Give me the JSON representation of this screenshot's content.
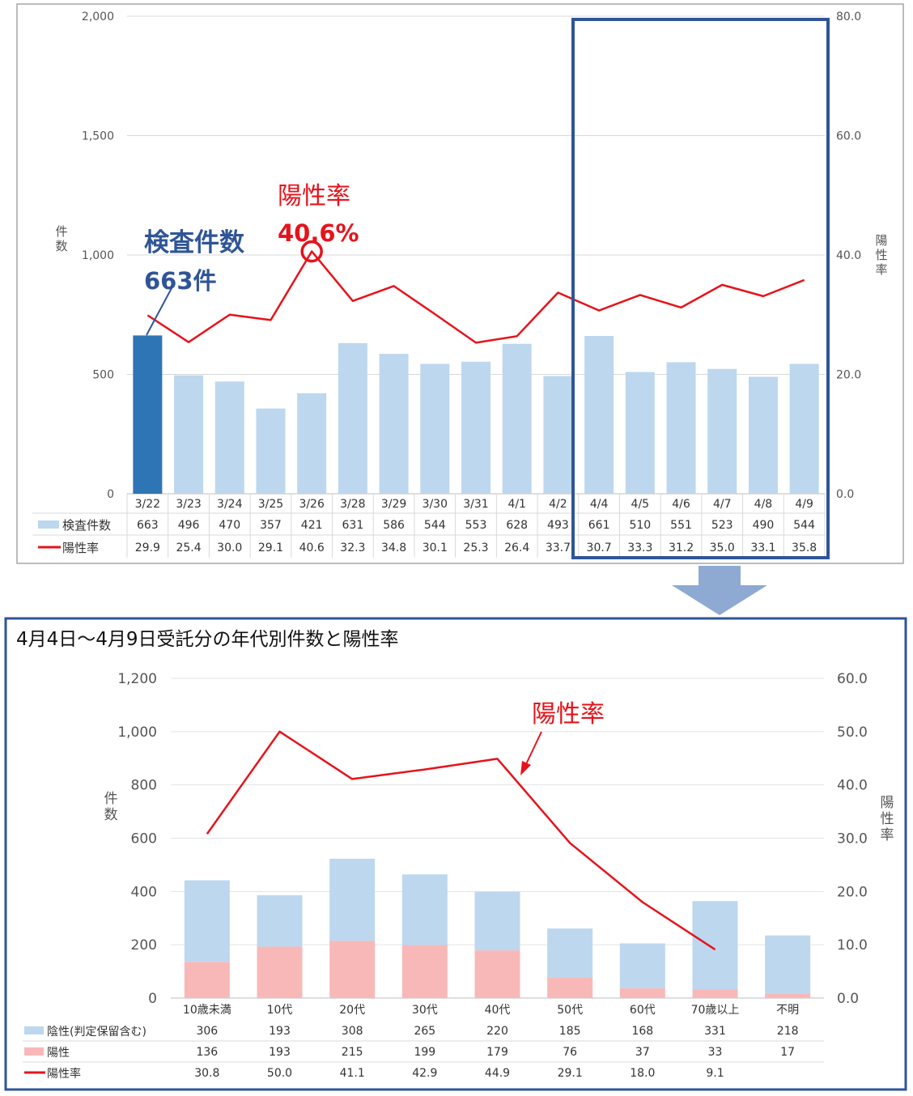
{
  "chart_data": [
    {
      "type": "bar",
      "y_ticks": [
        "2,000",
        "1,500",
        "1,000",
        "500",
        "0"
      ],
      "y2_ticks": [
        "80.0",
        "60.0",
        "40.0",
        "20.0",
        "0.0"
      ],
      "ylim": [
        0,
        2000
      ],
      "y2lim": [
        0,
        80
      ],
      "ylabel": "件数",
      "y2label": "陽性率",
      "categories": [
        "3/22",
        "3/23",
        "3/24",
        "3/25",
        "3/26",
        "3/28",
        "3/29",
        "3/30",
        "3/31",
        "4/1",
        "4/2",
        "4/4",
        "4/5",
        "4/6",
        "4/7",
        "4/8",
        "4/9"
      ],
      "series": [
        {
          "name": "検査件数",
          "type": "bar",
          "values": [
            663,
            496,
            470,
            357,
            421,
            631,
            586,
            544,
            553,
            628,
            493,
            661,
            510,
            551,
            523,
            490,
            544
          ]
        },
        {
          "name": "陽性率",
          "type": "line",
          "axis": "right",
          "values": [
            29.9,
            25.4,
            30.0,
            29.1,
            40.6,
            32.3,
            34.8,
            30.1,
            25.3,
            26.4,
            33.7,
            30.7,
            33.3,
            31.2,
            35.0,
            33.1,
            35.8
          ]
        }
      ],
      "table_values": {
        "count": [
          "663",
          "496",
          "470",
          "357",
          "421",
          "631",
          "586",
          "544",
          "553",
          "628",
          "493",
          "661",
          "510",
          "551",
          "523",
          "490",
          "544"
        ],
        "rate": [
          "29.9",
          "25.4",
          "30.0",
          "29.1",
          "40.6",
          "32.3",
          "34.8",
          "30.1",
          "25.3",
          "26.4",
          "33.7",
          "30.7",
          "33.3",
          "31.2",
          "35.0",
          "33.1",
          "35.8"
        ]
      },
      "highlight_index": 0,
      "annotations": {
        "count_line1": "検査件数",
        "count_line2": "663件",
        "rate_line1": "陽性率",
        "rate_line2": "40.6%"
      },
      "colors": {
        "bar": "#bdd7ee",
        "bar_highlight": "#2e75b6",
        "line": "#e6131b",
        "frame": "#2f5597"
      }
    },
    {
      "type": "bar",
      "stacked": true,
      "title": "4月4日～4月9日受託分の年代別件数と陽性率",
      "y_ticks": [
        "1,200",
        "1,000",
        "800",
        "600",
        "400",
        "200",
        "0"
      ],
      "y2_ticks": [
        "60.0",
        "50.0",
        "40.0",
        "30.0",
        "20.0",
        "10.0",
        "0.0"
      ],
      "ylim": [
        0,
        1200
      ],
      "y2lim": [
        0,
        60
      ],
      "ylabel": "件数",
      "y2label": "陽性率",
      "categories": [
        "10歳未満",
        "10代",
        "20代",
        "30代",
        "40代",
        "50代",
        "60代",
        "70歳以上",
        "不明"
      ],
      "series": [
        {
          "name": "陽性",
          "type": "bar",
          "values": [
            136,
            193,
            215,
            199,
            179,
            76,
            37,
            33,
            17
          ]
        },
        {
          "name": "陰性(判定保留含む)",
          "type": "bar",
          "values": [
            306,
            193,
            308,
            265,
            220,
            185,
            168,
            331,
            218
          ]
        },
        {
          "name": "陽性率",
          "type": "line",
          "axis": "right",
          "values": [
            30.8,
            50.0,
            41.1,
            42.9,
            44.9,
            29.1,
            18.0,
            9.1,
            null
          ]
        }
      ],
      "table_values": {
        "negative": [
          "306",
          "193",
          "308",
          "265",
          "220",
          "185",
          "168",
          "331",
          "218"
        ],
        "positive": [
          "136",
          "193",
          "215",
          "199",
          "179",
          "76",
          "37",
          "33",
          "17"
        ],
        "rate": [
          "30.8",
          "50.0",
          "41.1",
          "42.9",
          "44.9",
          "29.1",
          "18.0",
          "9.1",
          ""
        ]
      },
      "annotations": {
        "rate": "陽性率"
      },
      "colors": {
        "negative": "#bdd7ee",
        "positive": "#f8b8b8",
        "line": "#e6131b",
        "frame": "#2f5597"
      }
    }
  ]
}
